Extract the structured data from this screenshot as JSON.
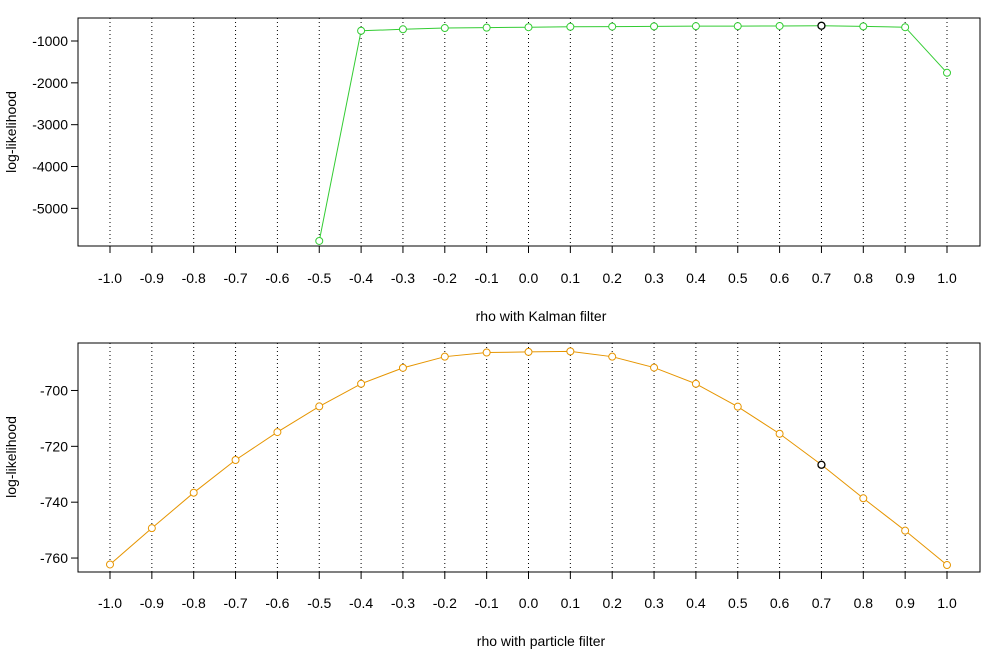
{
  "chart_data": [
    {
      "type": "line",
      "xlabel": "rho with Kalman filter",
      "ylabel": "log-likelihood",
      "ylim": [
        -5900,
        -450
      ],
      "y_ticks": [
        -5000,
        -4000,
        -3000,
        -2000,
        -1000
      ],
      "x_ticks": [
        -1.0,
        -0.9,
        -0.8,
        -0.7,
        -0.6,
        -0.5,
        -0.4,
        -0.3,
        -0.2,
        -0.1,
        0.0,
        0.1,
        0.2,
        0.3,
        0.4,
        0.5,
        0.6,
        0.7,
        0.8,
        0.9,
        1.0
      ],
      "x_tick_labels": [
        "-1.0",
        "-0.9",
        "-0.8",
        "-0.7",
        "-0.6",
        "-0.5",
        "-0.4",
        "-0.3",
        "-0.2",
        "-0.1",
        "0.0",
        "0.1",
        "0.2",
        "0.3",
        "0.4",
        "0.5",
        "0.6",
        "0.7",
        "0.8",
        "0.9",
        "1.0"
      ],
      "grid": "vertical dotted",
      "series": [
        {
          "color": "#33cc33",
          "x": [
            -0.5,
            -0.4,
            -0.3,
            -0.2,
            -0.1,
            0.0,
            0.1,
            0.2,
            0.3,
            0.4,
            0.5,
            0.6,
            0.7,
            0.8,
            0.9,
            1.0
          ],
          "values": [
            -5780,
            -755,
            -720,
            -690,
            -680,
            -670,
            -660,
            -655,
            -650,
            -645,
            -645,
            -640,
            -635,
            -650,
            -670,
            -1760
          ]
        }
      ],
      "highlight": {
        "x": 0.7,
        "value": -635,
        "color": "#000000"
      }
    },
    {
      "type": "line",
      "xlabel": "rho with particle filter",
      "ylabel": "log-likelihood",
      "ylim": [
        -765,
        -683
      ],
      "y_ticks": [
        -760,
        -740,
        -720,
        -700
      ],
      "x_ticks": [
        -1.0,
        -0.9,
        -0.8,
        -0.7,
        -0.6,
        -0.5,
        -0.4,
        -0.3,
        -0.2,
        -0.1,
        0.0,
        0.1,
        0.2,
        0.3,
        0.4,
        0.5,
        0.6,
        0.7,
        0.8,
        0.9,
        1.0
      ],
      "x_tick_labels": [
        "-1.0",
        "-0.9",
        "-0.8",
        "-0.7",
        "-0.6",
        "-0.5",
        "-0.4",
        "-0.3",
        "-0.2",
        "-0.1",
        "0.0",
        "0.1",
        "0.2",
        "0.3",
        "0.4",
        "0.5",
        "0.6",
        "0.7",
        "0.8",
        "0.9",
        "1.0"
      ],
      "grid": "vertical dotted",
      "series": [
        {
          "color": "#e69500",
          "x": [
            -1.0,
            -0.9,
            -0.8,
            -0.7,
            -0.6,
            -0.5,
            -0.4,
            -0.3,
            -0.2,
            -0.1,
            0.0,
            0.1,
            0.2,
            0.3,
            0.4,
            0.5,
            0.6,
            0.7,
            0.8,
            0.9,
            1.0
          ],
          "values": [
            -762.3,
            -749.3,
            -736.6,
            -724.9,
            -714.9,
            -705.7,
            -697.6,
            -691.9,
            -687.9,
            -686.4,
            -686.2,
            -686.0,
            -687.9,
            -691.8,
            -697.6,
            -705.8,
            -715.5,
            -726.6,
            -738.6,
            -750.2,
            -762.5
          ]
        }
      ],
      "highlight": {
        "x": 0.7,
        "value": -726.6,
        "color": "#000000"
      }
    }
  ]
}
